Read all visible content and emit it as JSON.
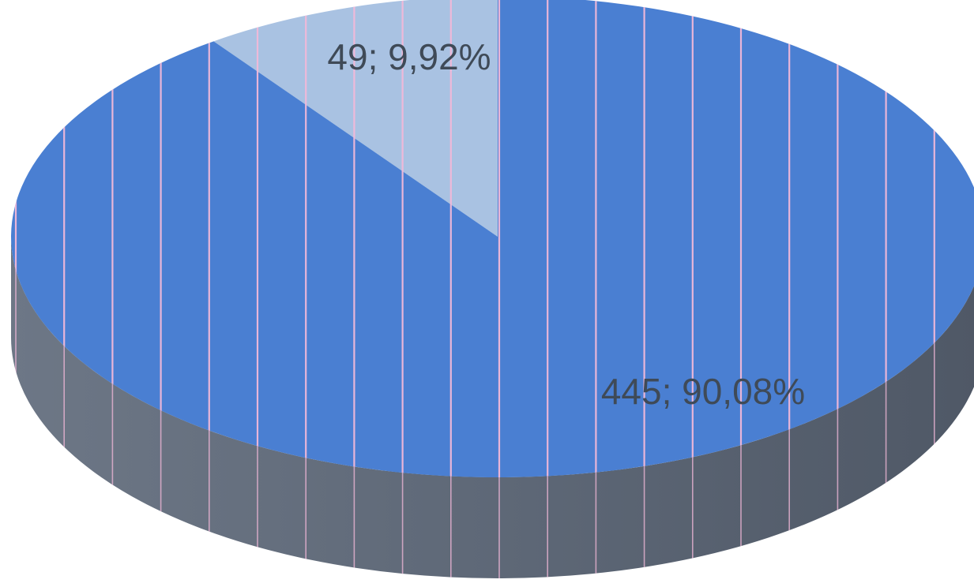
{
  "chart_data": {
    "type": "pie",
    "style": "3d",
    "slices": [
      {
        "value": 49,
        "percent": "9,92%",
        "label": "49; 9,92%",
        "color": "#a9c2e2"
      },
      {
        "value": 445,
        "percent": "90,08%",
        "label": "445; 90,08%",
        "color": "#4a7fd2"
      }
    ],
    "side_color": "#5b6573",
    "stripe_color": "#f2b9d9",
    "legend": "none",
    "title": ""
  }
}
